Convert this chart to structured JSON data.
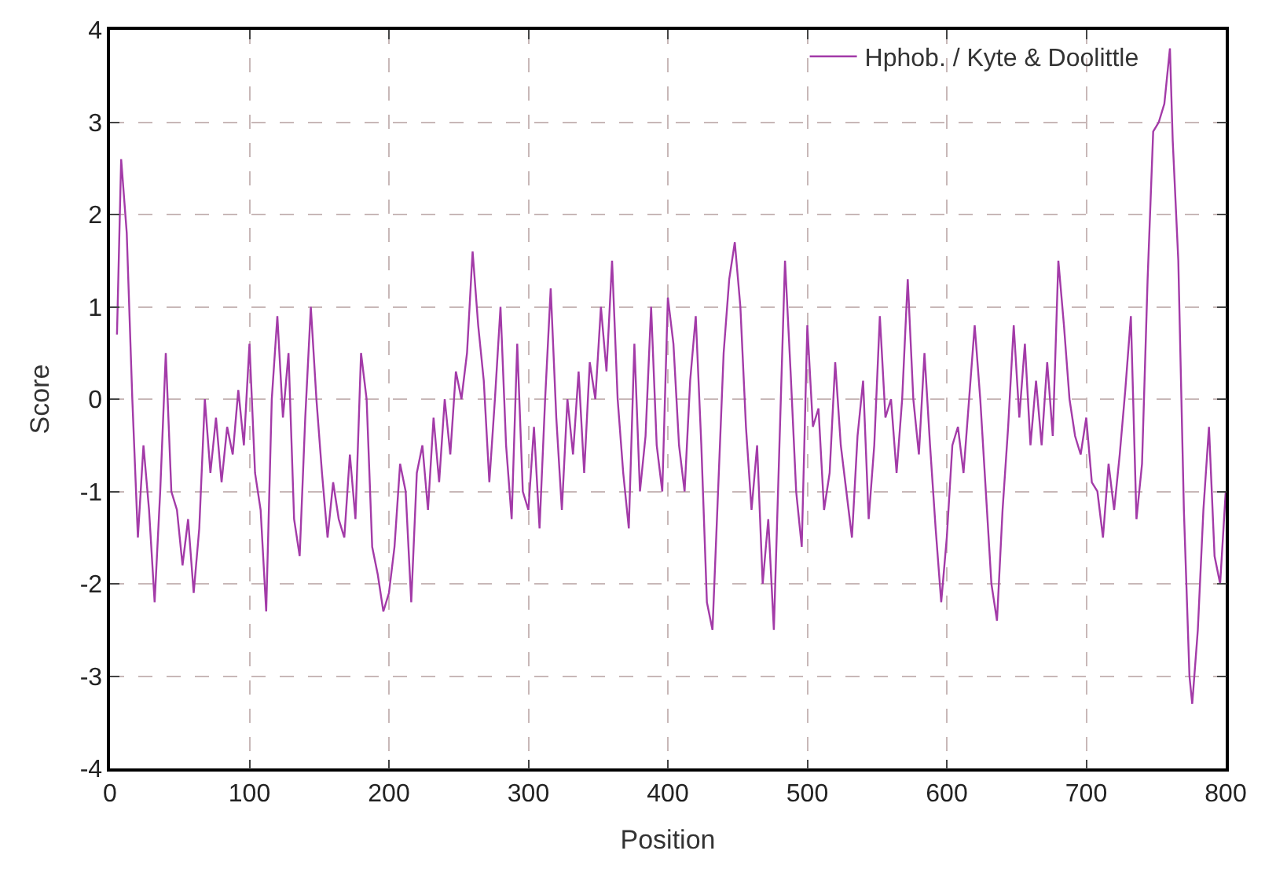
{
  "chart_data": {
    "type": "line",
    "xlabel": "Position",
    "ylabel": "Score",
    "xlim": [
      0,
      800
    ],
    "xticks": [
      0,
      100,
      200,
      300,
      400,
      500,
      600,
      700,
      800
    ],
    "ylim": [
      -4,
      4
    ],
    "yticks": [
      -4,
      -3,
      -2,
      -1,
      0,
      1,
      2,
      3,
      4
    ],
    "grid": true,
    "legend": "top right",
    "marker": "none",
    "line_style": "solid",
    "x": [
      5,
      8,
      12,
      16,
      20,
      24,
      28,
      32,
      36,
      40,
      44,
      48,
      52,
      56,
      60,
      64,
      68,
      72,
      76,
      80,
      84,
      88,
      92,
      96,
      100,
      104,
      108,
      112,
      116,
      120,
      124,
      128,
      132,
      136,
      140,
      144,
      148,
      152,
      156,
      160,
      164,
      168,
      172,
      176,
      180,
      184,
      188,
      192,
      196,
      200,
      204,
      208,
      212,
      216,
      220,
      224,
      228,
      232,
      236,
      240,
      244,
      248,
      252,
      256,
      260,
      264,
      268,
      272,
      276,
      280,
      284,
      288,
      292,
      296,
      300,
      304,
      308,
      312,
      316,
      320,
      324,
      328,
      332,
      336,
      340,
      344,
      348,
      352,
      356,
      360,
      364,
      368,
      372,
      376,
      380,
      384,
      388,
      392,
      396,
      400,
      404,
      408,
      412,
      416,
      420,
      424,
      428,
      432,
      436,
      440,
      444,
      448,
      452,
      456,
      460,
      464,
      468,
      472,
      476,
      480,
      484,
      488,
      492,
      496,
      500,
      504,
      508,
      512,
      516,
      520,
      524,
      528,
      532,
      536,
      540,
      544,
      548,
      552,
      556,
      560,
      564,
      568,
      572,
      576,
      580,
      584,
      588,
      592,
      596,
      600,
      604,
      608,
      612,
      616,
      620,
      624,
      628,
      632,
      636,
      640,
      644,
      648,
      652,
      656,
      660,
      664,
      668,
      672,
      676,
      680,
      684,
      688,
      692,
      696,
      700,
      704,
      708,
      712,
      716,
      720,
      724,
      728,
      732,
      736,
      740,
      744,
      748,
      752,
      756,
      760,
      762,
      766,
      770,
      774,
      776,
      780,
      784,
      788,
      792,
      796,
      800
    ],
    "series": [
      {
        "name": "Hphob. / Kyte & Doolittle",
        "color": "#a33ba8",
        "values": [
          0.7,
          2.6,
          1.8,
          0.0,
          -1.5,
          -0.5,
          -1.2,
          -2.2,
          -1.0,
          0.5,
          -1.0,
          -1.2,
          -1.8,
          -1.3,
          -2.1,
          -1.4,
          0.0,
          -0.8,
          -0.2,
          -0.9,
          -0.3,
          -0.6,
          0.1,
          -0.5,
          0.6,
          -0.8,
          -1.2,
          -2.3,
          0.0,
          0.9,
          -0.2,
          0.5,
          -1.3,
          -1.7,
          -0.2,
          1.0,
          0.0,
          -0.8,
          -1.5,
          -0.9,
          -1.3,
          -1.5,
          -0.6,
          -1.3,
          0.5,
          0.0,
          -1.6,
          -1.9,
          -2.3,
          -2.1,
          -1.6,
          -0.7,
          -1.0,
          -2.2,
          -0.8,
          -0.5,
          -1.2,
          -0.2,
          -0.9,
          0.0,
          -0.6,
          0.3,
          0.0,
          0.5,
          1.6,
          0.8,
          0.2,
          -0.9,
          0.0,
          1.0,
          -0.5,
          -1.3,
          0.6,
          -1.0,
          -1.2,
          -0.3,
          -1.4,
          0.0,
          1.2,
          -0.2,
          -1.2,
          0.0,
          -0.6,
          0.3,
          -0.8,
          0.4,
          0.0,
          1.0,
          0.3,
          1.5,
          0.0,
          -0.8,
          -1.4,
          0.6,
          -1.0,
          -0.4,
          1.0,
          -0.5,
          -1.0,
          1.1,
          0.6,
          -0.5,
          -1.0,
          0.2,
          0.9,
          -0.5,
          -2.2,
          -2.5,
          -1.0,
          0.5,
          1.3,
          1.7,
          1.0,
          -0.3,
          -1.2,
          -0.5,
          -2.0,
          -1.3,
          -2.5,
          -0.5,
          1.5,
          0.3,
          -1.0,
          -1.6,
          0.8,
          -0.3,
          -0.1,
          -1.2,
          -0.8,
          0.4,
          -0.5,
          -1.0,
          -1.5,
          -0.4,
          0.2,
          -1.3,
          -0.5,
          0.9,
          -0.2,
          0.0,
          -0.8,
          0.0,
          1.3,
          0.0,
          -0.6,
          0.5,
          -0.5,
          -1.4,
          -2.2,
          -1.5,
          -0.5,
          -0.3,
          -0.8,
          0.0,
          0.8,
          0.0,
          -1.0,
          -2.0,
          -2.4,
          -1.2,
          -0.3,
          0.8,
          -0.2,
          0.6,
          -0.5,
          0.2,
          -0.5,
          0.4,
          -0.4,
          1.5,
          0.8,
          0.0,
          -0.4,
          -0.6,
          -0.2,
          -0.9,
          -1.0,
          -1.5,
          -0.7,
          -1.2,
          -0.6,
          0.1,
          0.9,
          -1.3,
          -0.7,
          1.3,
          2.9,
          3.0,
          3.2,
          3.8,
          2.8,
          1.5,
          -1.2,
          -3.0,
          -3.3,
          -2.5,
          -1.2,
          -0.3,
          -1.7,
          -2.0,
          -1.0
        ]
      }
    ]
  }
}
